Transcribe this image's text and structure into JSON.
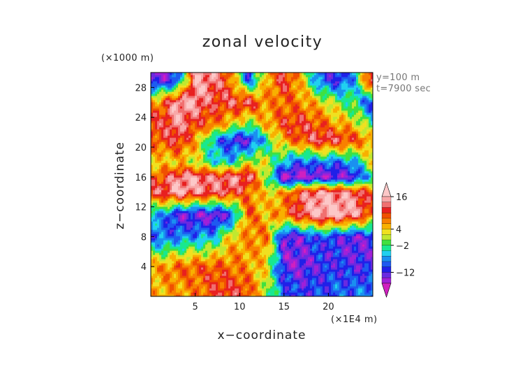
{
  "chart_data": {
    "type": "heatmap",
    "title": "zonal velocity",
    "xlabel": "x−coordinate",
    "ylabel": "z−coordinate",
    "x_unit_label": "(×1E4 m)",
    "y_unit_label": "(×1000 m)",
    "annotations": [
      "y=100  m",
      "t=7900 sec"
    ],
    "xlim": [
      0,
      25
    ],
    "ylim": [
      0,
      30
    ],
    "x_ticks": [
      5,
      10,
      15,
      20
    ],
    "y_ticks": [
      4,
      8,
      12,
      16,
      20,
      24,
      28
    ],
    "x_tick_labels": [
      "5",
      "10",
      "15",
      "20"
    ],
    "y_tick_labels": [
      "4",
      "8",
      "12",
      "16",
      "20",
      "24",
      "28"
    ],
    "colorbar": {
      "levels": [
        -18,
        -16,
        -14,
        -12,
        -10,
        -8,
        -6,
        -4,
        -2,
        0,
        2,
        4,
        6,
        8,
        10,
        12,
        14,
        16,
        18
      ],
      "tick_labels": [
        "16",
        "4",
        "−2",
        "−12"
      ],
      "tick_values": [
        16,
        4,
        -2,
        -12
      ],
      "extend": "both"
    },
    "field_grid": {
      "x": [
        1,
        3,
        5,
        7,
        9,
        11,
        13,
        15,
        17,
        19,
        21,
        23,
        25
      ],
      "z": [
        1,
        4,
        8,
        11,
        14,
        16,
        18,
        21,
        23,
        26,
        29
      ],
      "values": [
        [
          5,
          6,
          7,
          10,
          11,
          9,
          1,
          -9,
          -11,
          -10,
          -9,
          -9,
          -7
        ],
        [
          6,
          8,
          9,
          9,
          8,
          6,
          3,
          -13,
          -14,
          -12,
          -11,
          -12,
          -12
        ],
        [
          -9,
          -8,
          -7,
          -6,
          4,
          6,
          8,
          -14,
          -13,
          -9,
          -12,
          -14,
          -12
        ],
        [
          -6,
          -13,
          -14,
          -15,
          -12,
          9,
          4,
          8,
          13,
          16,
          17,
          15,
          8
        ],
        [
          12,
          16,
          14,
          13,
          12,
          8,
          3,
          6,
          12,
          15,
          14,
          13,
          9
        ],
        [
          9,
          14,
          15,
          13,
          14,
          14,
          0,
          -17,
          -16,
          -15,
          -15,
          -13,
          -3
        ],
        [
          3,
          4,
          2,
          -4,
          -5,
          2,
          2,
          -6,
          -10,
          -8,
          -9,
          -6,
          3
        ],
        [
          9,
          12,
          6,
          -6,
          -12,
          -13,
          -4,
          6,
          10,
          13,
          12,
          9,
          6
        ],
        [
          11,
          14,
          10,
          8,
          3,
          -2,
          5,
          10,
          11,
          9,
          6,
          4,
          -3
        ],
        [
          7,
          16,
          15,
          11,
          12,
          13,
          6,
          8,
          7,
          4,
          0,
          -3,
          -12
        ],
        [
          -14,
          -10,
          15,
          14,
          8,
          -10,
          5,
          12,
          4,
          -9,
          -12,
          -6,
          15
        ]
      ]
    }
  }
}
